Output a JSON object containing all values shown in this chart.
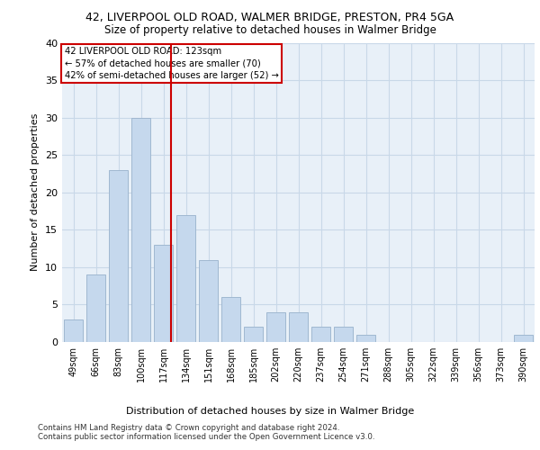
{
  "title_line1": "42, LIVERPOOL OLD ROAD, WALMER BRIDGE, PRESTON, PR4 5GA",
  "title_line2": "Size of property relative to detached houses in Walmer Bridge",
  "xlabel": "Distribution of detached houses by size in Walmer Bridge",
  "ylabel": "Number of detached properties",
  "categories": [
    "49sqm",
    "66sqm",
    "83sqm",
    "100sqm",
    "117sqm",
    "134sqm",
    "151sqm",
    "168sqm",
    "185sqm",
    "202sqm",
    "220sqm",
    "237sqm",
    "254sqm",
    "271sqm",
    "288sqm",
    "305sqm",
    "322sqm",
    "339sqm",
    "356sqm",
    "373sqm",
    "390sqm"
  ],
  "values": [
    3,
    9,
    23,
    30,
    13,
    17,
    11,
    6,
    2,
    4,
    4,
    2,
    2,
    1,
    0,
    0,
    0,
    0,
    0,
    0,
    1
  ],
  "bar_color": "#c5d8ed",
  "bar_edgecolor": "#a0b8d0",
  "red_line_x": 4.35,
  "red_line_label": "42 LIVERPOOL OLD ROAD: 123sqm",
  "annotation_line2": "← 57% of detached houses are smaller (70)",
  "annotation_line3": "42% of semi-detached houses are larger (52) →",
  "annotation_box_color": "#ffffff",
  "annotation_box_edgecolor": "#cc0000",
  "ylim": [
    0,
    40
  ],
  "yticks": [
    0,
    5,
    10,
    15,
    20,
    25,
    30,
    35,
    40
  ],
  "grid_color": "#c8d8e8",
  "background_color": "#e8f0f8",
  "footer_line1": "Contains HM Land Registry data © Crown copyright and database right 2024.",
  "footer_line2": "Contains public sector information licensed under the Open Government Licence v3.0."
}
